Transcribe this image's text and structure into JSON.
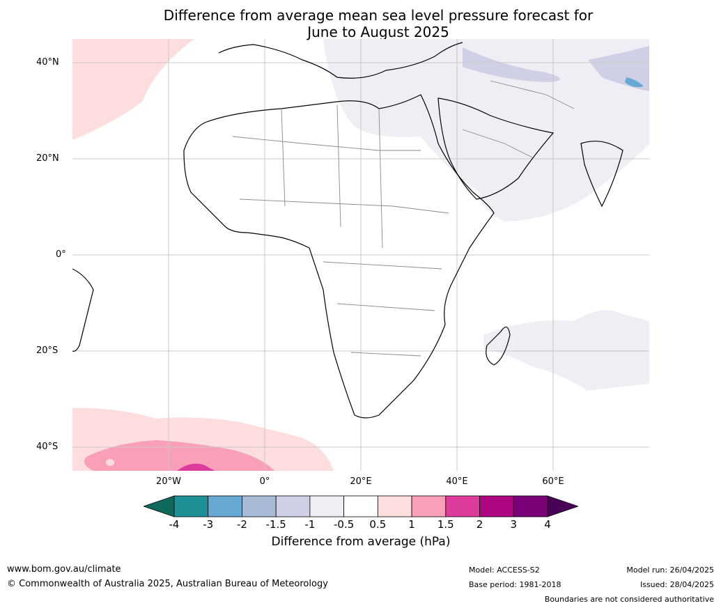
{
  "title_line1": "Difference from average mean sea level pressure forecast for",
  "title_line2": "June to August 2025",
  "lat_ticks": [
    "40°N",
    "20°N",
    "0°",
    "20°S",
    "40°S"
  ],
  "lon_ticks": [
    "20°W",
    "0°",
    "20°E",
    "40°E",
    "60°E"
  ],
  "colorbar": {
    "labels": [
      "-4",
      "-3",
      "-2",
      "-1.5",
      "-1",
      "-0.5",
      "0.5",
      "1",
      "1.5",
      "2",
      "3",
      "4"
    ],
    "colors": [
      "#1f9196",
      "#66a9d2",
      "#a8bad6",
      "#cfd0e6",
      "#f1edf4",
      "#ffffff",
      "#fddddd",
      "#f9a0b8",
      "#de3c9c",
      "#ad0680",
      "#7a0077"
    ],
    "extend_low_color": "#0e6b5c",
    "extend_high_color": "#4b0058",
    "title": "Difference from average (hPa)"
  },
  "footer": {
    "url": "www.bom.gov.au/climate",
    "copyright": "© Commonwealth of Australia 2025, Australian Bureau of Meteorology",
    "model": "Model: ACCESS-S2",
    "base_period": "Base period: 1981-2018",
    "model_run": "Model run: 26/04/2025",
    "issued": "Issued: 28/04/2025",
    "disclaimer": "Boundaries are not considered authoritative"
  }
}
